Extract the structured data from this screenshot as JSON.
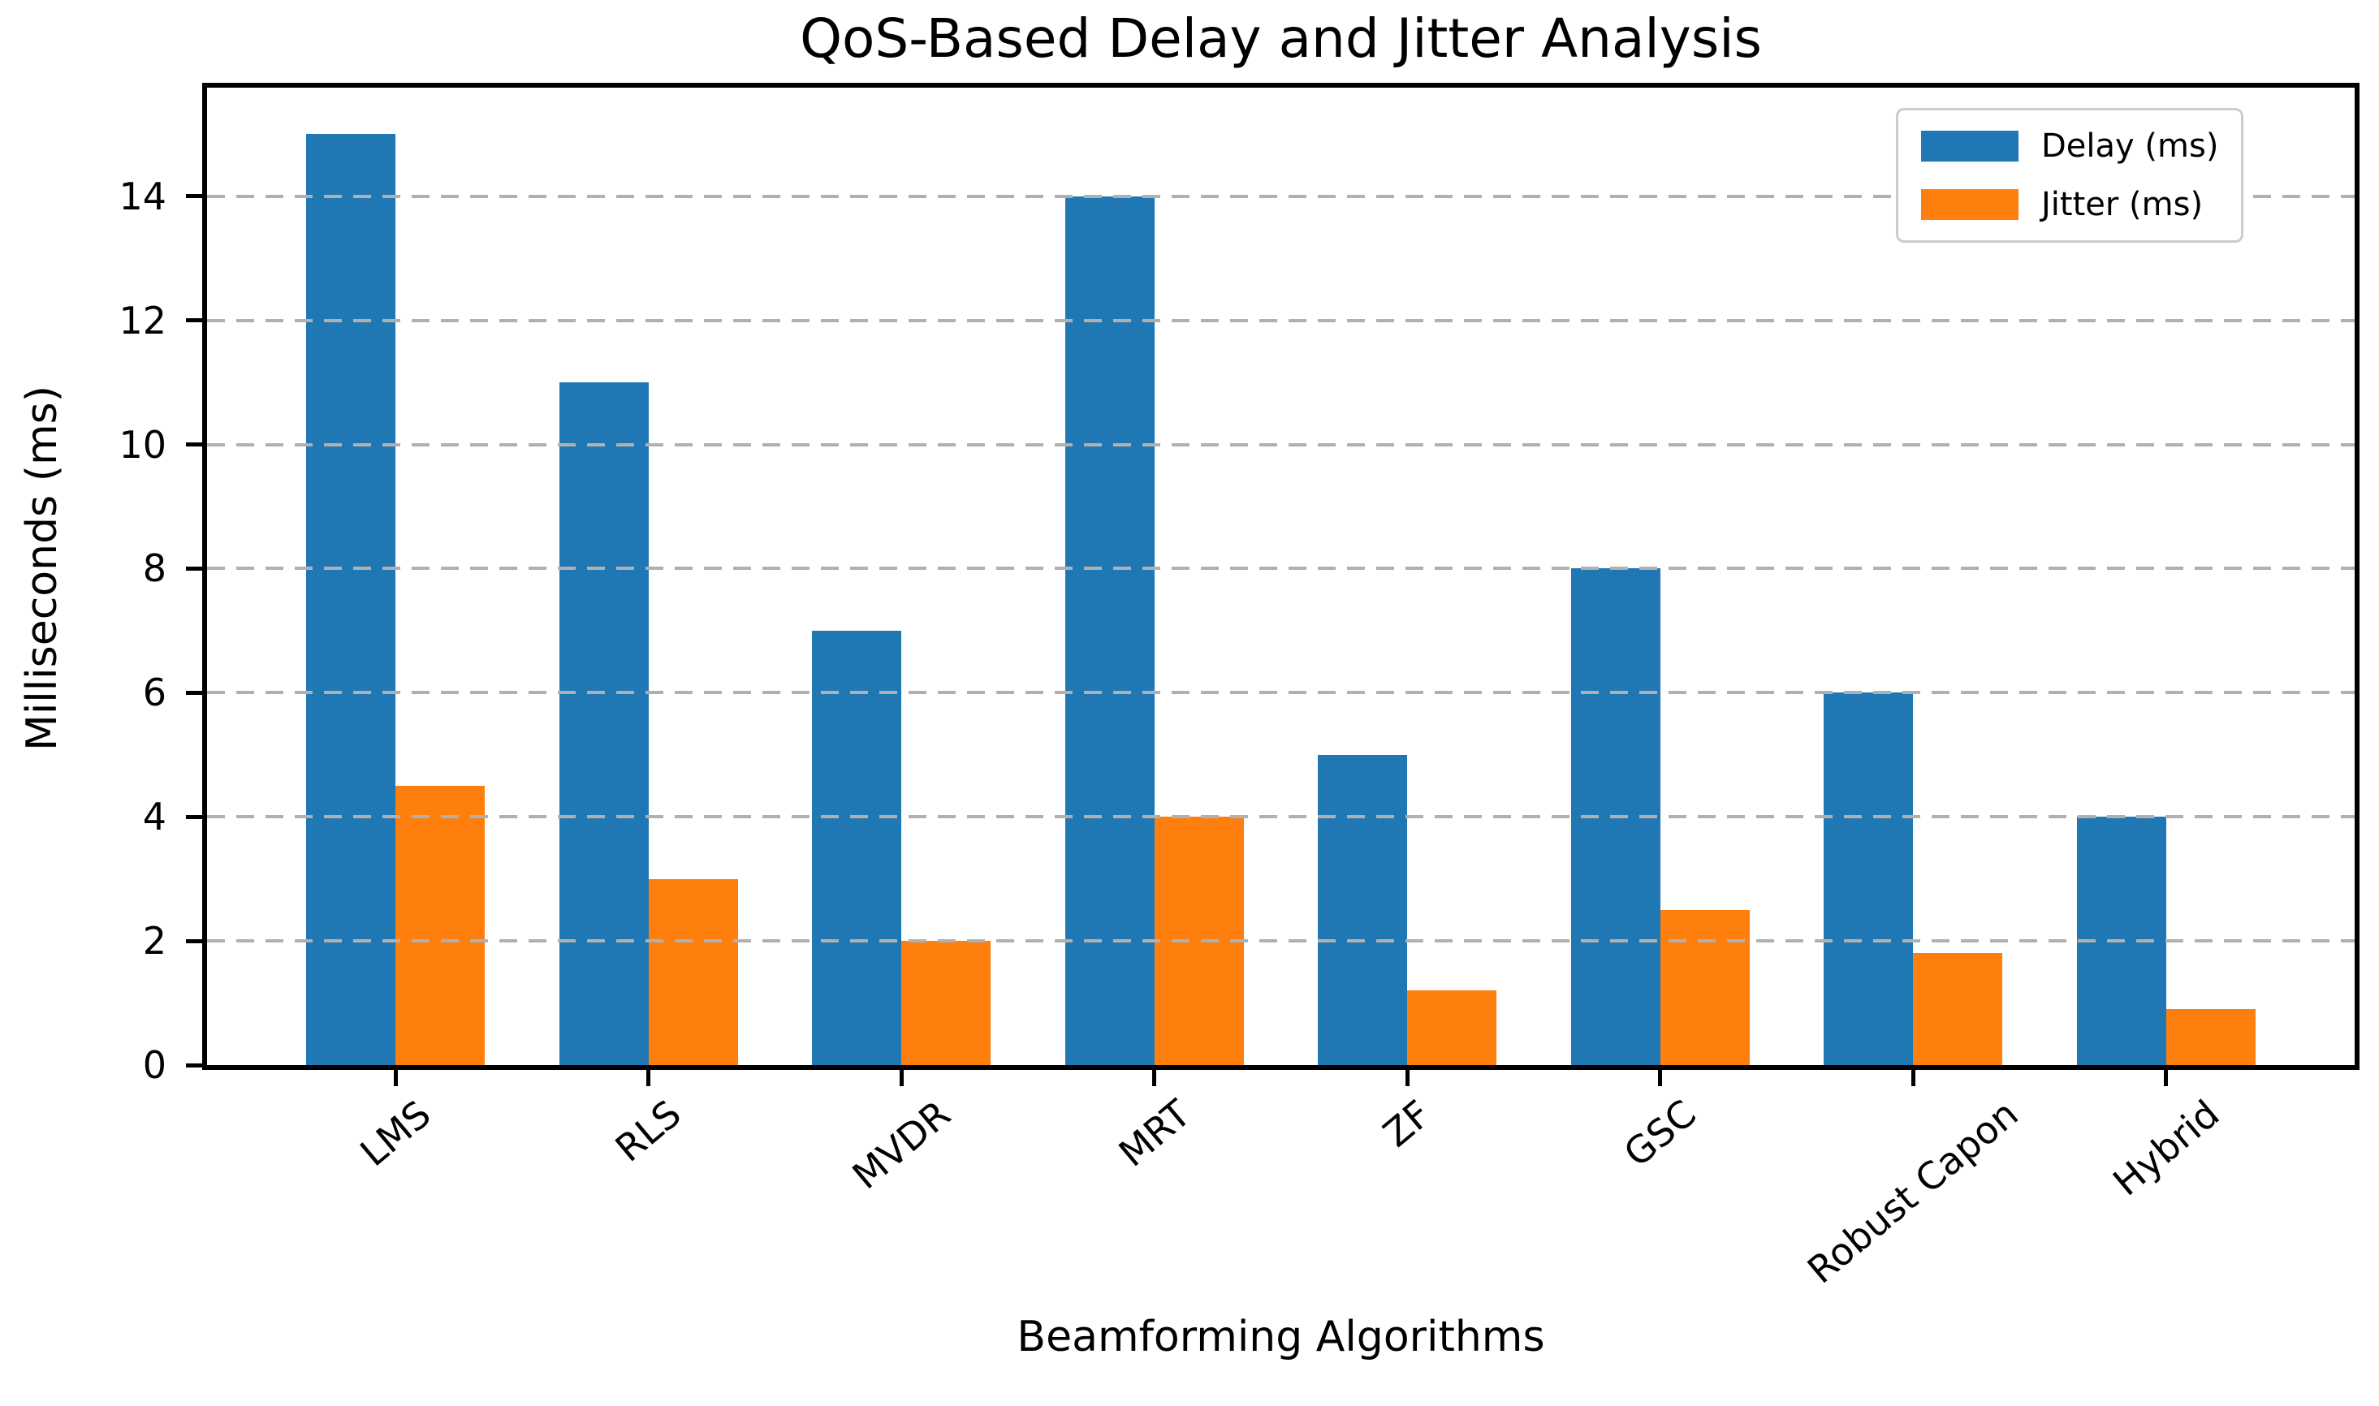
{
  "figure": {
    "title": "QoS-Based Delay and Jitter Analysis",
    "xlabel": "Beamforming Algorithms",
    "ylabel": "Milliseconds (ms)"
  },
  "legend": {
    "items": [
      {
        "label": "Delay (ms)",
        "color": "#1f77b4"
      },
      {
        "label": "Jitter (ms)",
        "color": "#ff7f0e"
      }
    ],
    "position": "upper right"
  },
  "colors": {
    "delay_bar": "#1f77b4",
    "jitter_bar": "#ff7f0e",
    "gridline": "#b0b0b0",
    "spine": "#000000",
    "legend_border": "#cccccc",
    "background": "#ffffff"
  },
  "chart_data": {
    "type": "bar",
    "title": "QoS-Based Delay and Jitter Analysis",
    "xlabel": "Beamforming Algorithms",
    "ylabel": "Milliseconds (ms)",
    "categories": [
      "LMS",
      "RLS",
      "MVDR",
      "MRT",
      "ZF",
      "GSC",
      "Robust Capon",
      "Hybrid"
    ],
    "series": [
      {
        "name": "Delay (ms)",
        "color": "#1f77b4",
        "values": [
          15,
          11,
          7,
          14,
          5,
          8,
          6,
          4
        ]
      },
      {
        "name": "Jitter (ms)",
        "color": "#ff7f0e",
        "values": [
          4.5,
          3,
          2,
          4,
          1.2,
          2.5,
          1.8,
          0.9
        ]
      }
    ],
    "ylim": [
      0,
      15.75
    ],
    "yticks": [
      0,
      2,
      4,
      6,
      8,
      10,
      12,
      14
    ],
    "xtick_rotation_deg": 40,
    "grid": "y-axis dashed, drawn above bars",
    "legend_position": "upper right"
  }
}
